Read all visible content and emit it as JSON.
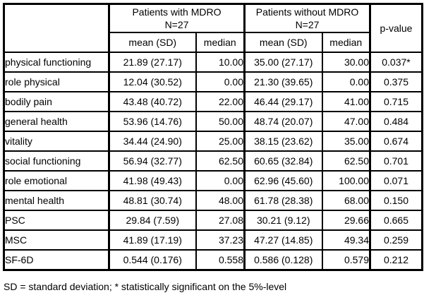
{
  "header": {
    "group1_title": "Patients with MDRO",
    "group1_n": "N=27",
    "group2_title": "Patients without MDRO",
    "group2_n": "N=27",
    "mean_sd_label": "mean (SD)",
    "median_label": "median",
    "pvalue_label": "p-value"
  },
  "rows": [
    {
      "label": "physical functioning",
      "g1_mean_sd": "21.89 (27.17)",
      "g1_median": "10.00",
      "g2_mean_sd": "35.00 (27.17)",
      "g2_median": "30.00",
      "p": "0.037*"
    },
    {
      "label": "role physical",
      "g1_mean_sd": "12.04 (30.52)",
      "g1_median": "0.00",
      "g2_mean_sd": "21.30 (39.65)",
      "g2_median": "0.00",
      "p": "0.375"
    },
    {
      "label": "bodily pain",
      "g1_mean_sd": "43.48 (40.72)",
      "g1_median": "22.00",
      "g2_mean_sd": "46.44 (29.17)",
      "g2_median": "41.00",
      "p": "0.715"
    },
    {
      "label": "general health",
      "g1_mean_sd": "53.96 (14.76)",
      "g1_median": "50.00",
      "g2_mean_sd": "48.74 (20.07)",
      "g2_median": "47.00",
      "p": "0.484"
    },
    {
      "label": "vitality",
      "g1_mean_sd": "34.44 (24.90)",
      "g1_median": "25.00",
      "g2_mean_sd": "38.15 (23.62)",
      "g2_median": "35.00",
      "p": "0.674"
    },
    {
      "label": "social functioning",
      "g1_mean_sd": "56.94 (32.77)",
      "g1_median": "62.50",
      "g2_mean_sd": "60.65 (32.84)",
      "g2_median": "62.50",
      "p": "0.701"
    },
    {
      "label": "role emotional",
      "g1_mean_sd": "41.98 (49.43)",
      "g1_median": "0.00",
      "g2_mean_sd": "62.96 (45.60)",
      "g2_median": "100.00",
      "p": "0.071"
    },
    {
      "label": "mental health",
      "g1_mean_sd": "48.81 (30.74)",
      "g1_median": "48.00",
      "g2_mean_sd": "61.78 (28.38)",
      "g2_median": "68.00",
      "p": "0.150"
    },
    {
      "label": "PSC",
      "g1_mean_sd": "29.84 (7.59)",
      "g1_median": "27.08",
      "g2_mean_sd": "30.21  (9.12)",
      "g2_median": "29.66",
      "p": "0.665"
    },
    {
      "label": "MSC",
      "g1_mean_sd": "41.89 (17.19)",
      "g1_median": "37.23",
      "g2_mean_sd": "47.27 (14.85)",
      "g2_median": "49.34",
      "p": "0.259"
    },
    {
      "label": "SF-6D",
      "g1_mean_sd": "0.544 (0.176)",
      "g1_median": "0.558",
      "g2_mean_sd": "0.586 (0.128)",
      "g2_median": "0.579",
      "p": "0.212"
    }
  ],
  "footnote": "SD = standard deviation; * statistically significant on the 5%-level",
  "colors": {
    "border": "#000000",
    "text": "#000000",
    "background": "#ffffff"
  }
}
